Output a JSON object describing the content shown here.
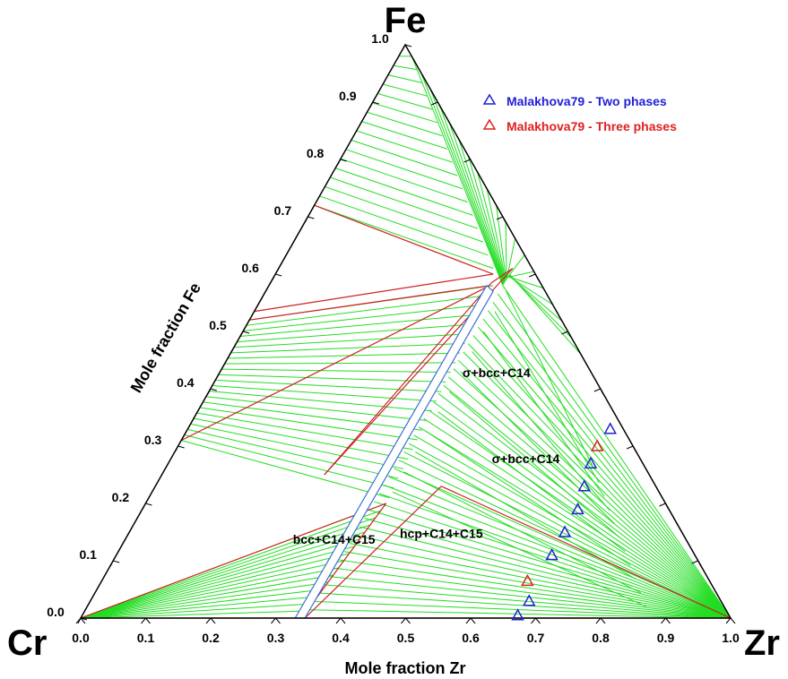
{
  "chart_data": {
    "type": "scatter",
    "subtype": "ternary-isothermal-section",
    "vertices": {
      "top": "Fe",
      "left": "Cr",
      "right": "Zr"
    },
    "axis_labels": {
      "left": "Mole fraction Fe",
      "bottom": "Mole fraction Zr"
    },
    "ticks": [
      "0.0",
      "0.1",
      "0.2",
      "0.3",
      "0.4",
      "0.5",
      "0.6",
      "0.7",
      "0.8",
      "0.9",
      "1.0"
    ],
    "tick_values": [
      0,
      0.1,
      0.2,
      0.3,
      0.4,
      0.5,
      0.6,
      0.7,
      0.8,
      0.9,
      1.0
    ],
    "region_labels": [
      {
        "text": "σ+bcc+C14",
        "zr": 0.55,
        "fe": 0.27
      },
      {
        "text": "σ+bcc+C14",
        "zr": 0.43,
        "fe": 0.42
      },
      {
        "text": "bcc+C14+C15",
        "zr": 0.325,
        "fe": 0.13
      },
      {
        "text": "hcp+C14+C15",
        "zr": 0.485,
        "fe": 0.14
      }
    ],
    "legend": [
      {
        "label": "Malakhova79 - Two phases",
        "color": "#1f1fd6",
        "marker": "triangle"
      },
      {
        "label": "Malakhova79 - Three phases",
        "color": "#e02020",
        "marker": "triangle"
      }
    ],
    "series": [
      {
        "name": "Malakhova79 - Two phases",
        "color": "#1f1fd6",
        "points": [
          {
            "zr": 0.67,
            "fe": 0.005
          },
          {
            "zr": 0.675,
            "fe": 0.03
          },
          {
            "zr": 0.67,
            "fe": 0.11
          },
          {
            "zr": 0.67,
            "fe": 0.15
          },
          {
            "zr": 0.67,
            "fe": 0.19
          },
          {
            "zr": 0.66,
            "fe": 0.23
          },
          {
            "zr": 0.65,
            "fe": 0.27
          },
          {
            "zr": 0.65,
            "fe": 0.33
          }
        ]
      },
      {
        "name": "Malakhova79 - Three phases",
        "color": "#e02020",
        "points": [
          {
            "zr": 0.655,
            "fe": 0.065
          },
          {
            "zr": 0.645,
            "fe": 0.3
          }
        ]
      }
    ],
    "single_phase_regions": [
      {
        "name": "C14",
        "boundary": [
          {
            "zr": 0.33,
            "fe": 0.0
          },
          {
            "zr": 0.345,
            "fe": 0.0
          },
          {
            "zr": 0.35,
            "fe": 0.57
          },
          {
            "zr": 0.335,
            "fe": 0.58
          }
        ]
      }
    ],
    "three_phase_triangles": [
      {
        "vertices": [
          {
            "zr": 0.0,
            "fe": 0.0
          },
          {
            "zr": 0.34,
            "fe": 0.0
          },
          {
            "zr": 0.37,
            "fe": 0.2
          }
        ]
      },
      {
        "vertices": [
          {
            "zr": 0.44,
            "fe": 0.23
          },
          {
            "zr": 1.0,
            "fe": 0.0
          },
          {
            "zr": 0.345,
            "fe": 0.0
          }
        ]
      },
      {
        "vertices": [
          {
            "zr": 0.0,
            "fe": 0.72
          },
          {
            "zr": 0.0,
            "fe": 0.535
          },
          {
            "zr": 0.335,
            "fe": 0.6
          }
        ]
      },
      {
        "vertices": [
          {
            "zr": 0.0,
            "fe": 0.52
          },
          {
            "zr": 0.0,
            "fe": 0.31
          },
          {
            "zr": 0.34,
            "fe": 0.58
          }
        ]
      },
      {
        "vertices": [
          {
            "zr": 0.36,
            "fe": 0.61
          },
          {
            "zr": 0.34,
            "fe": 0.585
          },
          {
            "zr": 0.25,
            "fe": 0.25
          }
        ]
      }
    ],
    "tie_line_color": "#22dd22",
    "phase_boundary_color": "#cc2222"
  }
}
